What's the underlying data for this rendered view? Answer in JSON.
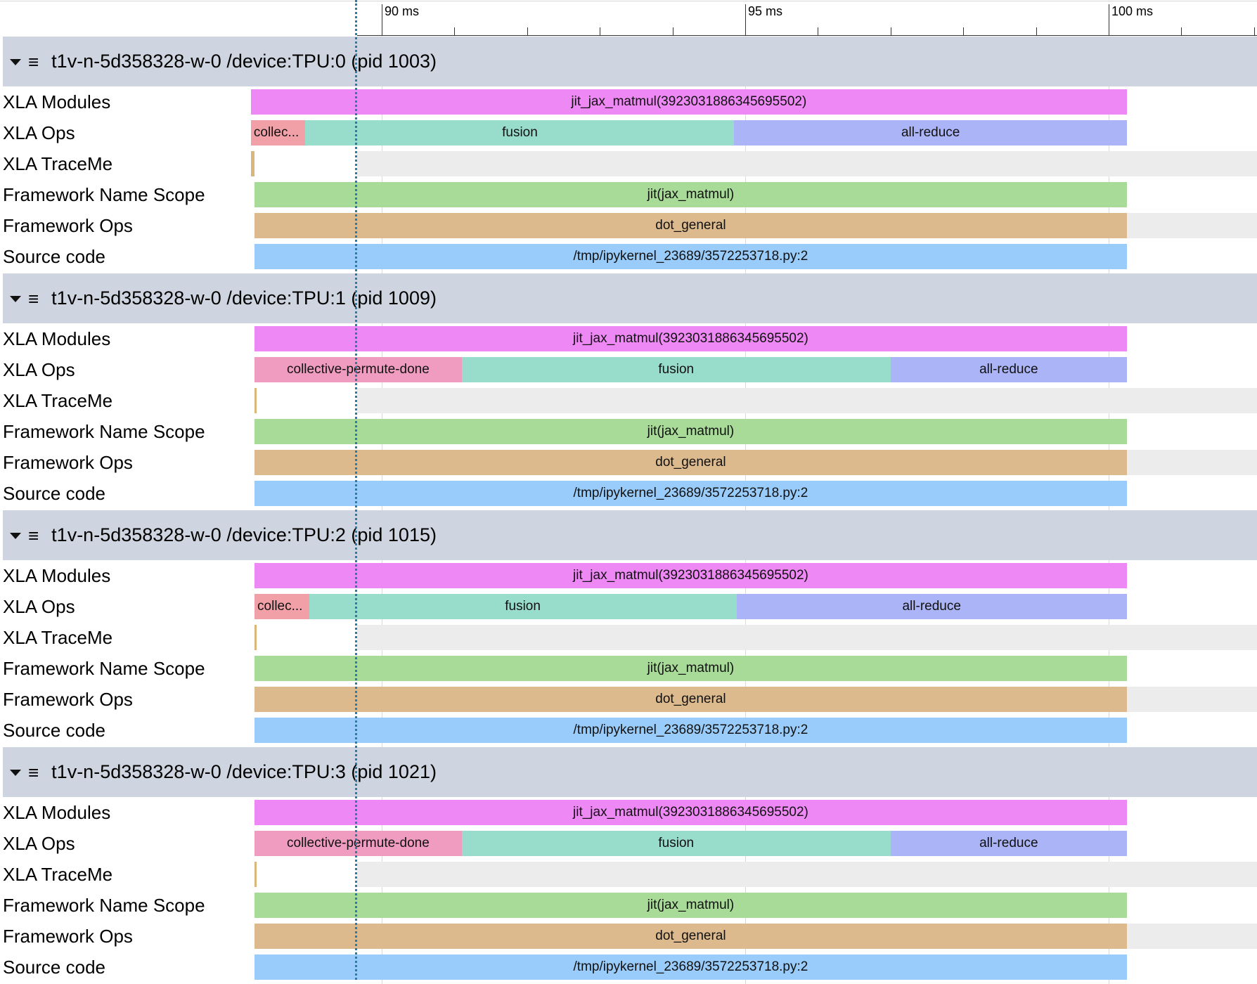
{
  "ruler": {
    "ticks": [
      {
        "label": "90 ms",
        "value": 90
      },
      {
        "label": "95 ms",
        "value": 95
      },
      {
        "label": "100 ms",
        "value": 100
      }
    ]
  },
  "processes": [
    {
      "header": "t1v-n-5d358328-w-0 /device:TPU:0 (pid 1003)",
      "tracks": [
        {
          "label": "XLA Modules",
          "shade": false,
          "events": [
            {
              "name": "jit_jax_matmul(3923031886345695502)",
              "start": 88.2,
              "end": 100.25,
              "color": "#ee88f4"
            }
          ]
        },
        {
          "label": "XLA Ops",
          "shade": false,
          "events": [
            {
              "name": "collec...",
              "start": 88.2,
              "end": 88.95,
              "color": "#f2a0a8",
              "left": true
            },
            {
              "name": "fusion",
              "start": 88.95,
              "end": 94.85,
              "color": "#98dccc"
            },
            {
              "name": "all-reduce",
              "start": 94.85,
              "end": 100.25,
              "color": "#aab4f6"
            }
          ]
        },
        {
          "label": "XLA TraceMe",
          "shade": true,
          "events": [
            {
              "name": "",
              "start": 88.2,
              "end": 88.25,
              "color": "#d8b67c"
            }
          ]
        },
        {
          "label": "Framework Name Scope",
          "shade": false,
          "events": [
            {
              "name": "jit(jax_matmul)",
              "start": 88.25,
              "end": 100.25,
              "color": "#a8da98"
            }
          ]
        },
        {
          "label": "Framework Ops",
          "shade": true,
          "events": [
            {
              "name": "dot_general",
              "start": 88.25,
              "end": 100.25,
              "color": "#dcba8e"
            }
          ]
        },
        {
          "label": "Source code",
          "shade": false,
          "events": [
            {
              "name": "/tmp/ipykernel_23689/3572253718.py:2",
              "start": 88.25,
              "end": 100.25,
              "color": "#99ccfa"
            }
          ]
        }
      ]
    },
    {
      "header": "t1v-n-5d358328-w-0 /device:TPU:1 (pid 1009)",
      "tracks": [
        {
          "label": "XLA Modules",
          "shade": false,
          "events": [
            {
              "name": "jit_jax_matmul(3923031886345695502)",
              "start": 88.25,
              "end": 100.25,
              "color": "#ee88f4"
            }
          ]
        },
        {
          "label": "XLA Ops",
          "shade": false,
          "events": [
            {
              "name": "collective-permute-done",
              "start": 88.25,
              "end": 91.1,
              "color": "#f09cc0"
            },
            {
              "name": "fusion",
              "start": 91.1,
              "end": 97.0,
              "color": "#98dccc"
            },
            {
              "name": "all-reduce",
              "start": 97.0,
              "end": 100.25,
              "color": "#aab4f6"
            }
          ]
        },
        {
          "label": "XLA TraceMe",
          "shade": true,
          "events": [
            {
              "name": "",
              "start": 88.25,
              "end": 88.27,
              "color": "#d8b67c"
            }
          ]
        },
        {
          "label": "Framework Name Scope",
          "shade": false,
          "events": [
            {
              "name": "jit(jax_matmul)",
              "start": 88.25,
              "end": 100.25,
              "color": "#a8da98"
            }
          ]
        },
        {
          "label": "Framework Ops",
          "shade": true,
          "events": [
            {
              "name": "dot_general",
              "start": 88.25,
              "end": 100.25,
              "color": "#dcba8e"
            }
          ]
        },
        {
          "label": "Source code",
          "shade": false,
          "events": [
            {
              "name": "/tmp/ipykernel_23689/3572253718.py:2",
              "start": 88.25,
              "end": 100.25,
              "color": "#99ccfa"
            }
          ]
        }
      ]
    },
    {
      "header": "t1v-n-5d358328-w-0 /device:TPU:2 (pid 1015)",
      "tracks": [
        {
          "label": "XLA Modules",
          "shade": false,
          "events": [
            {
              "name": "jit_jax_matmul(3923031886345695502)",
              "start": 88.25,
              "end": 100.25,
              "color": "#ee88f4"
            }
          ]
        },
        {
          "label": "XLA Ops",
          "shade": false,
          "events": [
            {
              "name": "collec...",
              "start": 88.25,
              "end": 89.0,
              "color": "#f2a0a8",
              "left": true
            },
            {
              "name": "fusion",
              "start": 89.0,
              "end": 94.88,
              "color": "#98dccc"
            },
            {
              "name": "all-reduce",
              "start": 94.88,
              "end": 100.25,
              "color": "#aab4f6"
            }
          ]
        },
        {
          "label": "XLA TraceMe",
          "shade": true,
          "events": [
            {
              "name": "",
              "start": 88.25,
              "end": 88.27,
              "color": "#d8b67c"
            }
          ]
        },
        {
          "label": "Framework Name Scope",
          "shade": false,
          "events": [
            {
              "name": "jit(jax_matmul)",
              "start": 88.25,
              "end": 100.25,
              "color": "#a8da98"
            }
          ]
        },
        {
          "label": "Framework Ops",
          "shade": true,
          "events": [
            {
              "name": "dot_general",
              "start": 88.25,
              "end": 100.25,
              "color": "#dcba8e"
            }
          ]
        },
        {
          "label": "Source code",
          "shade": false,
          "events": [
            {
              "name": "/tmp/ipykernel_23689/3572253718.py:2",
              "start": 88.25,
              "end": 100.25,
              "color": "#99ccfa"
            }
          ]
        }
      ]
    },
    {
      "header": "t1v-n-5d358328-w-0 /device:TPU:3 (pid 1021)",
      "tracks": [
        {
          "label": "XLA Modules",
          "shade": false,
          "events": [
            {
              "name": "jit_jax_matmul(3923031886345695502)",
              "start": 88.25,
              "end": 100.25,
              "color": "#ee88f4"
            }
          ]
        },
        {
          "label": "XLA Ops",
          "shade": false,
          "events": [
            {
              "name": "collective-permute-done",
              "start": 88.25,
              "end": 91.1,
              "color": "#f09cc0"
            },
            {
              "name": "fusion",
              "start": 91.1,
              "end": 97.0,
              "color": "#98dccc"
            },
            {
              "name": "all-reduce",
              "start": 97.0,
              "end": 100.25,
              "color": "#aab4f6"
            }
          ]
        },
        {
          "label": "XLA TraceMe",
          "shade": true,
          "events": [
            {
              "name": "",
              "start": 88.25,
              "end": 88.27,
              "color": "#d8b67c"
            }
          ]
        },
        {
          "label": "Framework Name Scope",
          "shade": false,
          "events": [
            {
              "name": "jit(jax_matmul)",
              "start": 88.25,
              "end": 100.25,
              "color": "#a8da98"
            }
          ]
        },
        {
          "label": "Framework Ops",
          "shade": true,
          "events": [
            {
              "name": "dot_general",
              "start": 88.25,
              "end": 100.25,
              "color": "#dcba8e"
            }
          ]
        },
        {
          "label": "Source code",
          "shade": false,
          "events": [
            {
              "name": "/tmp/ipykernel_23689/3572253718.py:2",
              "start": 88.25,
              "end": 100.25,
              "color": "#99ccfa"
            }
          ]
        }
      ]
    }
  ]
}
